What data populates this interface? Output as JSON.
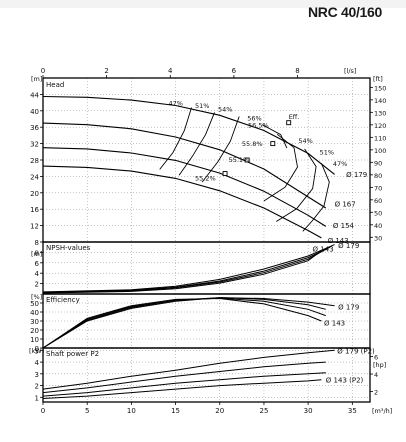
{
  "model_title": "NRC 40/160",
  "chart_data": [
    {
      "type": "line",
      "panel": "head",
      "title": "Head",
      "xlabel": "m³/h",
      "secondary_x_unit": "l/s",
      "secondary_x_ticks": [
        0,
        2,
        4,
        6,
        8
      ],
      "left_unit": "m",
      "right_unit": "ft",
      "xlim": [
        0,
        37
      ],
      "ylim": [
        8,
        48
      ],
      "y_ticks": [
        8,
        12,
        16,
        20,
        24,
        28,
        32,
        36,
        40,
        44
      ],
      "right_ticks_ft": [
        30,
        40,
        50,
        60,
        70,
        80,
        90,
        100,
        110,
        120,
        130,
        140,
        150,
        160
      ],
      "x_ticks": [
        0,
        5,
        10,
        15,
        20,
        25,
        30,
        35
      ],
      "series": [
        {
          "name": "Ø 179",
          "x": [
            0,
            5,
            10,
            15,
            20,
            25,
            30,
            33
          ],
          "y": [
            43.5,
            43.3,
            42.6,
            41.3,
            38.9,
            35.2,
            29.6,
            24.5
          ]
        },
        {
          "name": "Ø 167",
          "x": [
            0,
            5,
            10,
            15,
            20,
            25,
            30,
            32
          ],
          "y": [
            37.0,
            36.6,
            35.6,
            33.6,
            30.5,
            25.8,
            19.0,
            16.3
          ]
        },
        {
          "name": "Ø 154",
          "x": [
            0,
            5,
            10,
            15,
            20,
            25,
            30,
            32
          ],
          "y": [
            31.0,
            30.7,
            29.7,
            27.9,
            24.8,
            20.4,
            14.5,
            11.8
          ]
        },
        {
          "name": "Ø 143",
          "x": [
            0,
            5,
            10,
            15,
            20,
            25,
            30,
            31.5
          ],
          "y": [
            26.5,
            26.2,
            25.3,
            23.5,
            20.5,
            16.3,
            10.8,
            9.0
          ]
        }
      ],
      "efficiency_labels": [
        "47%",
        "51%",
        "54%",
        "56%",
        "Eff.",
        "56.5%",
        "55.8%",
        "55.1%",
        "55.2%",
        "54%",
        "51%",
        "47%"
      ],
      "diameter_labels": [
        "Ø 179",
        "Ø 167",
        "Ø 154",
        "Ø 143"
      ]
    },
    {
      "type": "line",
      "panel": "npsh",
      "title": "NPSH-values",
      "left_unit": "m",
      "xlim": [
        0,
        37
      ],
      "ylim": [
        0,
        10
      ],
      "y_ticks": [
        2,
        4,
        6,
        8
      ],
      "series": [
        {
          "name": "Ø 179",
          "x": [
            0,
            10,
            15,
            20,
            25,
            30,
            33
          ],
          "y": [
            0.4,
            0.8,
            1.5,
            2.8,
            4.8,
            7.3,
            9.5
          ]
        },
        {
          "name": "Ø 167",
          "x": [
            0,
            10,
            15,
            20,
            25,
            30,
            32.5
          ],
          "y": [
            0.3,
            0.7,
            1.3,
            2.5,
            4.4,
            7.0,
            9.0
          ]
        },
        {
          "name": "Ø 154",
          "x": [
            0,
            10,
            15,
            20,
            25,
            30,
            32
          ],
          "y": [
            0.3,
            0.6,
            1.2,
            2.3,
            4.1,
            6.7,
            8.6
          ]
        },
        {
          "name": "Ø 143",
          "x": [
            0,
            10,
            15,
            20,
            25,
            30,
            31.5
          ],
          "y": [
            0.2,
            0.5,
            1.0,
            2.1,
            3.8,
            6.4,
            8.3
          ]
        }
      ],
      "end_labels": [
        "Ø 179",
        "Ø 143"
      ]
    },
    {
      "type": "line",
      "panel": "efficiency",
      "title": "Efficiency",
      "left_unit": "%",
      "xlim": [
        0,
        37
      ],
      "ylim": [
        0,
        60
      ],
      "y_ticks": [
        0,
        10,
        20,
        30,
        40,
        50
      ],
      "series": [
        {
          "name": "Ø 179",
          "x": [
            0,
            5,
            10,
            15,
            20,
            25,
            30,
            33
          ],
          "y": [
            0,
            30,
            44,
            52,
            56,
            55,
            51,
            47
          ]
        },
        {
          "name": "Ø 167",
          "x": [
            0,
            5,
            10,
            15,
            20,
            25,
            30,
            32
          ],
          "y": [
            0,
            31,
            45,
            53,
            56,
            54,
            48,
            43
          ]
        },
        {
          "name": "Ø 154",
          "x": [
            0,
            5,
            10,
            15,
            20,
            25,
            30,
            32
          ],
          "y": [
            0,
            32,
            46,
            53,
            55.5,
            52,
            43,
            36
          ]
        },
        {
          "name": "Ø 143",
          "x": [
            0,
            5,
            10,
            15,
            20,
            25,
            30,
            31.5
          ],
          "y": [
            0,
            33,
            47,
            54,
            55,
            49,
            36,
            30
          ]
        }
      ],
      "end_labels": [
        "Ø 179",
        "Ø 143"
      ]
    },
    {
      "type": "line",
      "panel": "power",
      "title": "Shaft power P2",
      "left_unit": "kW",
      "right_unit": "hp",
      "xlabel": "m³/h",
      "xlim": [
        0,
        37
      ],
      "ylim": [
        0.6,
        5.2
      ],
      "y_ticks": [
        1,
        2,
        3,
        4,
        5
      ],
      "right_ticks_hp": [
        2,
        4,
        6
      ],
      "x_ticks": [
        0,
        5,
        10,
        15,
        20,
        25,
        30,
        35
      ],
      "series": [
        {
          "name": "Ø 179 (P2)",
          "x": [
            0,
            5,
            10,
            15,
            20,
            25,
            30,
            33
          ],
          "y": [
            1.7,
            2.2,
            2.8,
            3.3,
            3.9,
            4.4,
            4.8,
            5.0
          ]
        },
        {
          "name": "Ø 167 (P2)",
          "x": [
            0,
            5,
            10,
            15,
            20,
            25,
            30,
            32
          ],
          "y": [
            1.4,
            1.8,
            2.3,
            2.8,
            3.2,
            3.6,
            3.9,
            4.0
          ]
        },
        {
          "name": "Ø 154 (P2)",
          "x": [
            0,
            5,
            10,
            15,
            20,
            25,
            30,
            32
          ],
          "y": [
            1.1,
            1.4,
            1.8,
            2.2,
            2.5,
            2.8,
            3.0,
            3.1
          ]
        },
        {
          "name": "Ø 143 (P2)",
          "x": [
            0,
            5,
            10,
            15,
            20,
            25,
            30,
            31.5
          ],
          "y": [
            0.9,
            1.1,
            1.4,
            1.7,
            2.0,
            2.2,
            2.4,
            2.5
          ]
        }
      ],
      "end_labels": [
        "Ø 179 (P2)",
        "Ø 143 (P2)"
      ]
    }
  ]
}
